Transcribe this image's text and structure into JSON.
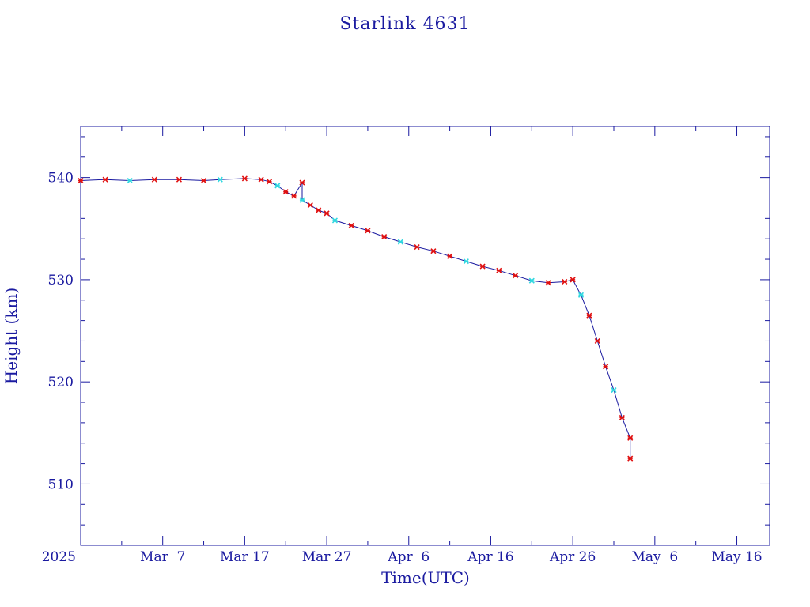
{
  "colors": {
    "frame": "#1a1aa0",
    "line": "#1a1aa0",
    "marker_primary": "#e01010",
    "marker_secondary": "#30d8e0"
  },
  "chart_data": {
    "type": "line",
    "title": "Starlink 4631",
    "xlabel": "Time(UTC)",
    "ylabel": "Height (km)",
    "grid": false,
    "xlim": [
      "2025-02-25",
      "2025-05-20"
    ],
    "ylim": [
      504,
      545
    ],
    "x_tick_labels": [
      {
        "date": "2025-02-25",
        "label": "2025"
      },
      {
        "date": "2025-03-07",
        "label": "Mar  7"
      },
      {
        "date": "2025-03-17",
        "label": "Mar 17"
      },
      {
        "date": "2025-03-27",
        "label": "Mar 27"
      },
      {
        "date": "2025-04-06",
        "label": "Apr  6"
      },
      {
        "date": "2025-04-16",
        "label": "Apr 16"
      },
      {
        "date": "2025-04-26",
        "label": "Apr 26"
      },
      {
        "date": "2025-05-06",
        "label": "May  6"
      },
      {
        "date": "2025-05-16",
        "label": "May 16"
      }
    ],
    "y_ticks": [
      510,
      520,
      530,
      540
    ],
    "series": [
      {
        "style": "line+markers",
        "points": [
          [
            "2025-02-25",
            539.7
          ],
          [
            "2025-02-28",
            539.8
          ],
          [
            "2025-03-03",
            539.7
          ],
          [
            "2025-03-06",
            539.8
          ],
          [
            "2025-03-09",
            539.8
          ],
          [
            "2025-03-12",
            539.7
          ],
          [
            "2025-03-14",
            539.8
          ],
          [
            "2025-03-17",
            539.9
          ],
          [
            "2025-03-19",
            539.8
          ],
          [
            "2025-03-20",
            539.6
          ],
          [
            "2025-03-21",
            539.2
          ],
          [
            "2025-03-22",
            538.6
          ],
          [
            "2025-03-23",
            538.2
          ],
          [
            "2025-03-24",
            539.5
          ],
          [
            "2025-03-24",
            537.8
          ],
          [
            "2025-03-25",
            537.3
          ],
          [
            "2025-03-26",
            536.8
          ],
          [
            "2025-03-27",
            536.5
          ],
          [
            "2025-03-28",
            535.8
          ],
          [
            "2025-03-30",
            535.3
          ],
          [
            "2025-04-01",
            534.8
          ],
          [
            "2025-04-03",
            534.2
          ],
          [
            "2025-04-05",
            533.7
          ],
          [
            "2025-04-07",
            533.2
          ],
          [
            "2025-04-09",
            532.8
          ],
          [
            "2025-04-11",
            532.3
          ],
          [
            "2025-04-13",
            531.8
          ],
          [
            "2025-04-15",
            531.3
          ],
          [
            "2025-04-17",
            530.9
          ],
          [
            "2025-04-19",
            530.4
          ],
          [
            "2025-04-21",
            529.9
          ],
          [
            "2025-04-23",
            529.7
          ],
          [
            "2025-04-25",
            529.8
          ],
          [
            "2025-04-26",
            530.0
          ],
          [
            "2025-04-27",
            528.5
          ],
          [
            "2025-04-28",
            526.5
          ],
          [
            "2025-04-29",
            524.0
          ],
          [
            "2025-04-30",
            521.5
          ],
          [
            "2025-05-01",
            519.2
          ],
          [
            "2025-05-02",
            516.5
          ],
          [
            "2025-05-03",
            514.5
          ],
          [
            "2025-05-03",
            512.5
          ]
        ]
      }
    ]
  }
}
